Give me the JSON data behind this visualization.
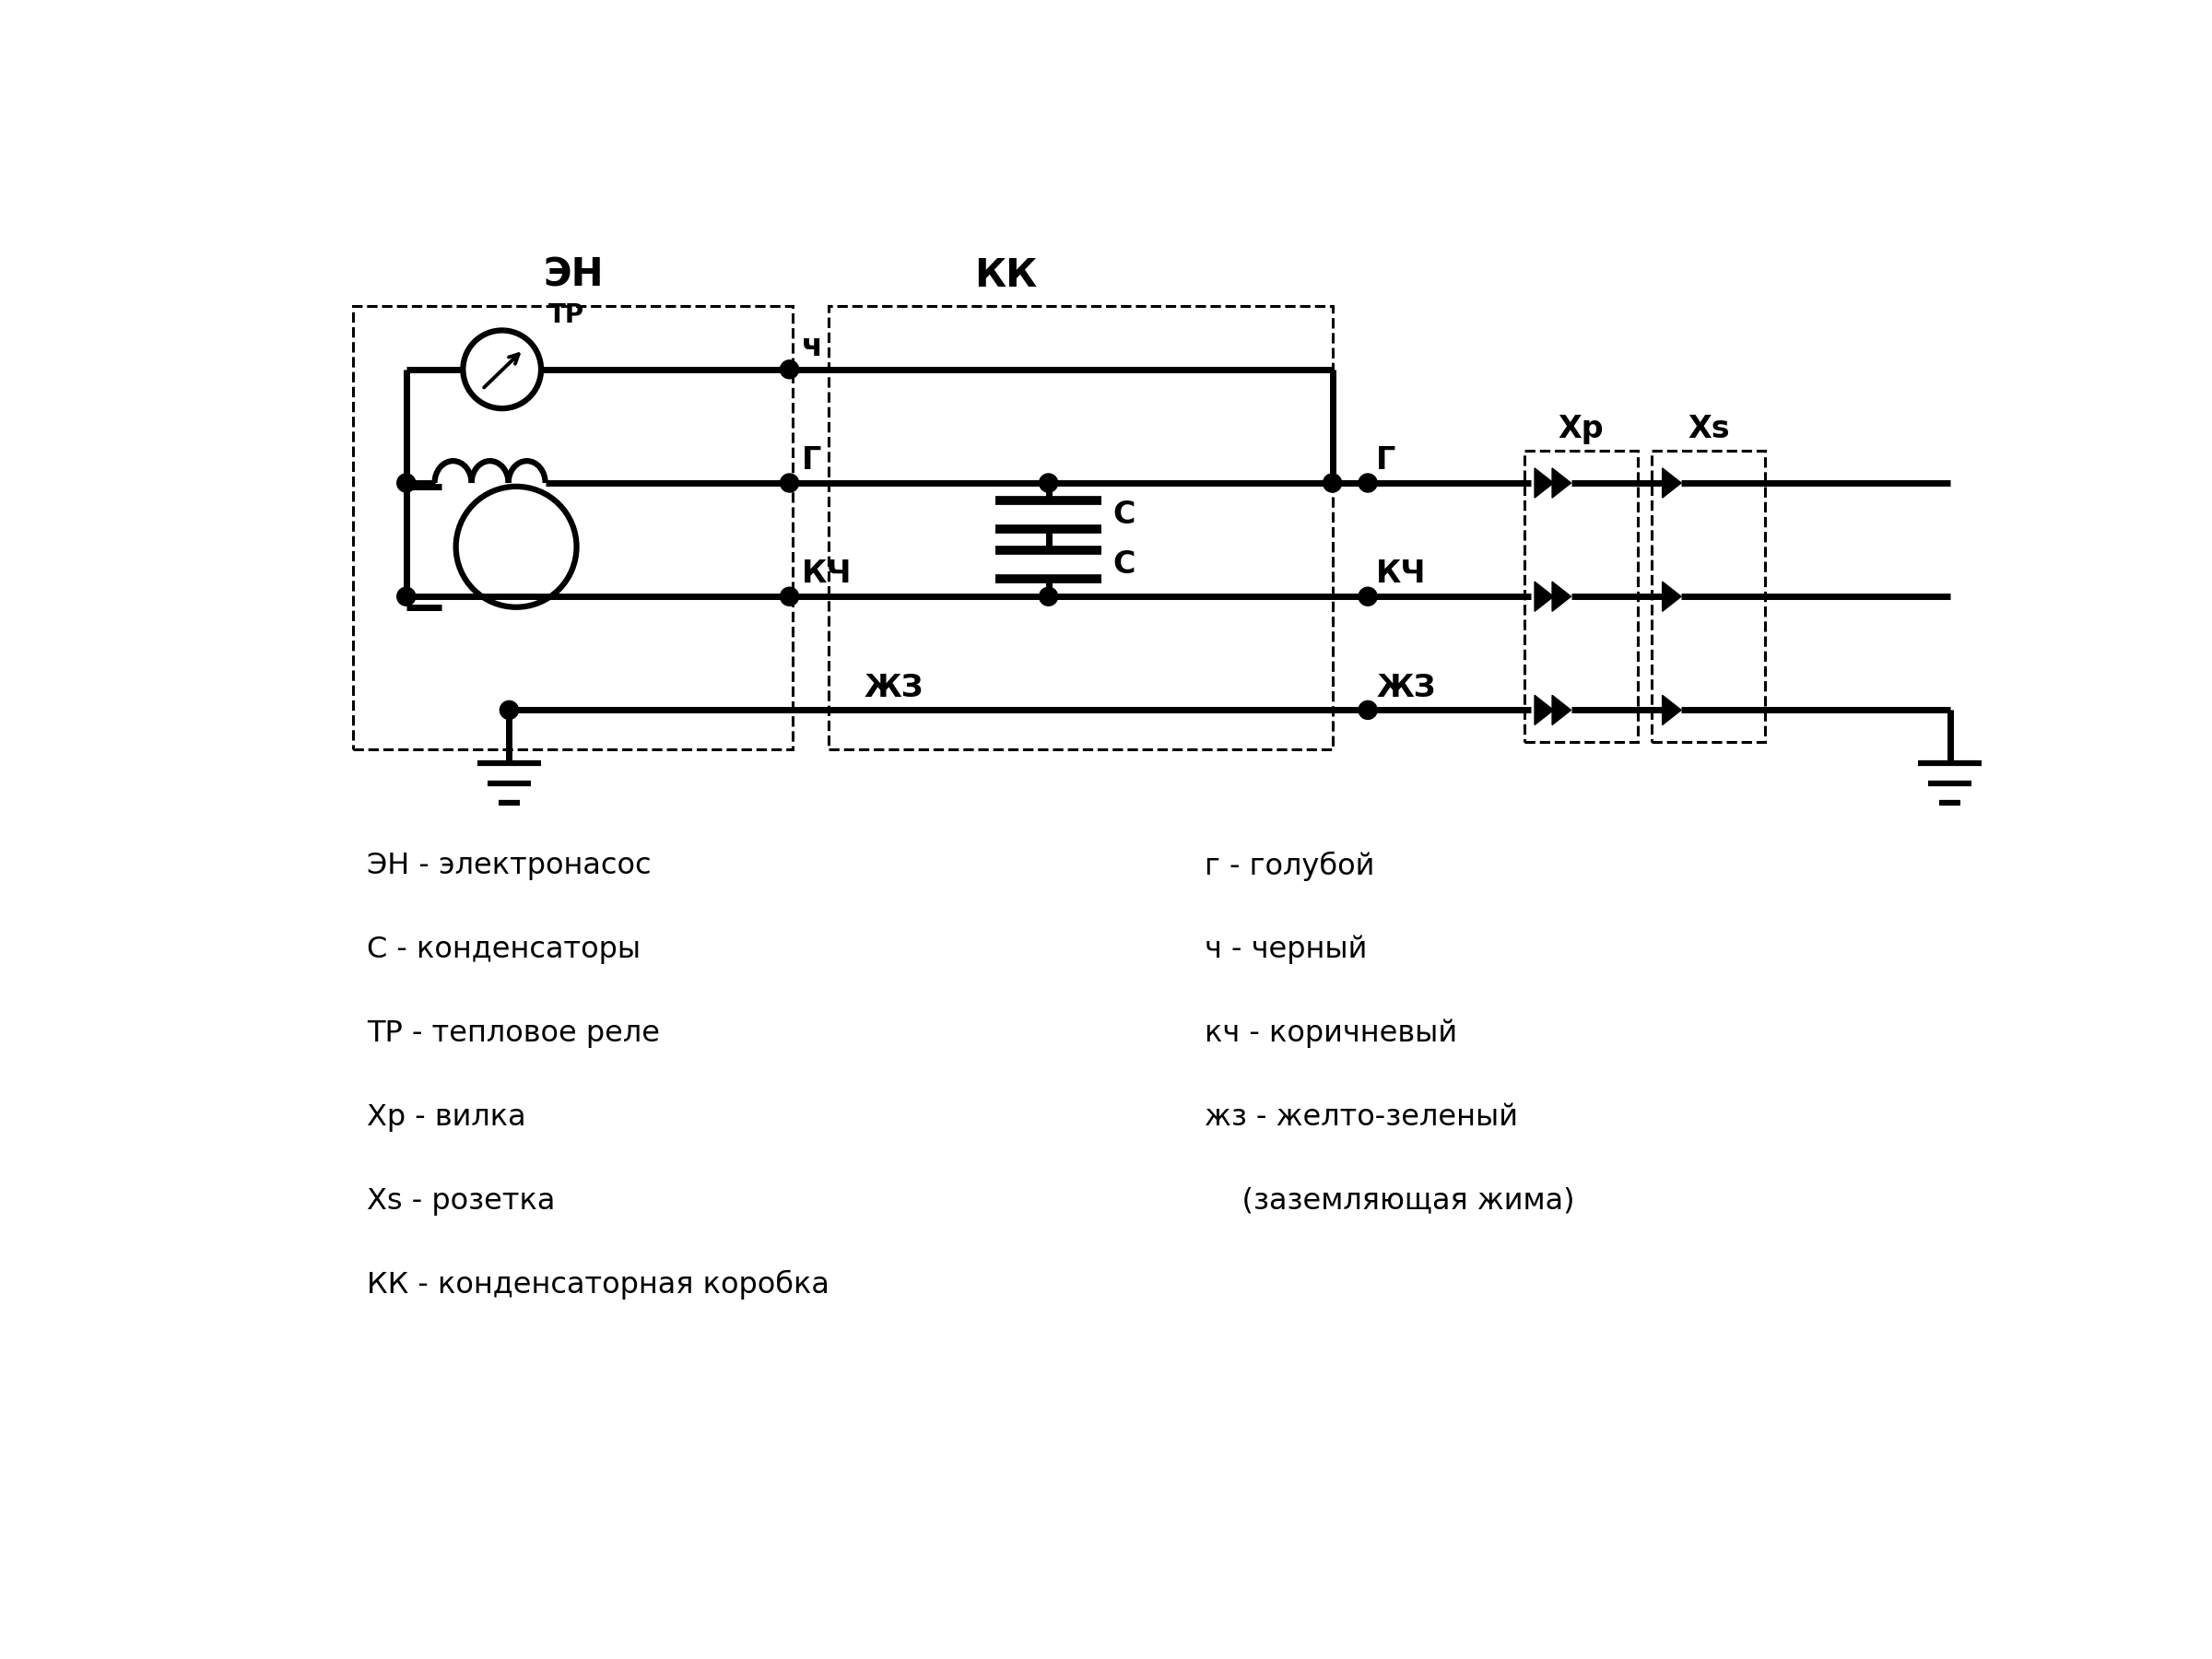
{
  "fig_width": 24,
  "fig_height": 18,
  "background_color": "#ffffff",
  "labels": {
    "EN": "ЭН",
    "KK": "КК",
    "TR": "ТР",
    "Xp": "Xp",
    "Xs": "Xs",
    "ch": "ч",
    "g": "Г",
    "kch": "КЧ",
    "zhz": "ЖЗ",
    "C": "C",
    "g2": "Г",
    "kch2": "КЧ",
    "zhz2": "ЖЗ"
  },
  "legend_col1": [
    "ЭН - электронасос",
    "С - конденсаторы",
    "ТР - тепловое реле",
    "Хр - вилка",
    "Xs - розетка",
    "КК - конденсаторная коробка"
  ],
  "legend_col2": [
    "г - голубой",
    "ч - черный",
    "кч - коричневый",
    "жз - желто-зеленый",
    "    (заземляющая жима)",
    ""
  ]
}
